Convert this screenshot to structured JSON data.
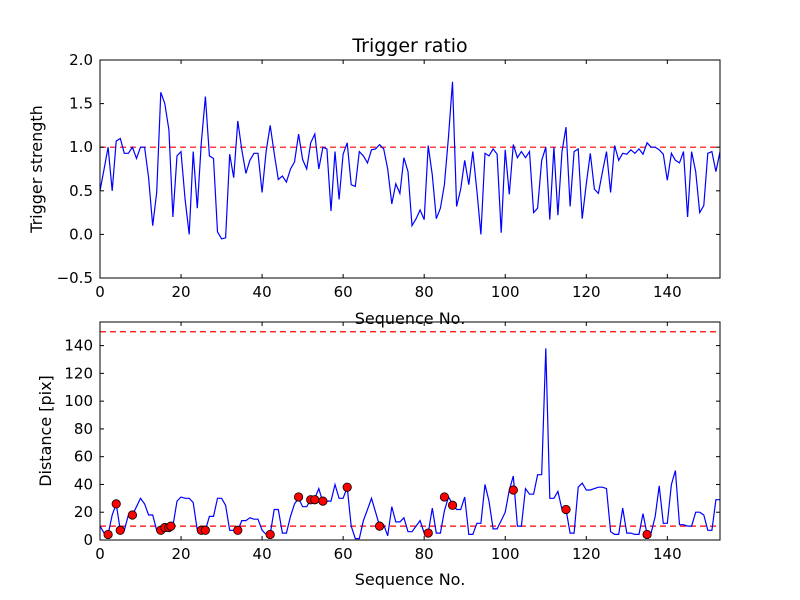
{
  "chart_data": [
    {
      "type": "line",
      "title": "Trigger ratio",
      "xlabel": "Sequence No.",
      "ylabel": "Trigger strength",
      "xlim": [
        0,
        153
      ],
      "ylim": [
        -0.5,
        2.0
      ],
      "xticks": [
        0,
        20,
        40,
        60,
        80,
        100,
        120,
        140
      ],
      "xtick_labels": [
        "0",
        "20",
        "40",
        "60",
        "80",
        "100",
        "120",
        "140"
      ],
      "yticks": [
        -0.5,
        0.0,
        0.5,
        1.0,
        1.5,
        2.0
      ],
      "ytick_labels": [
        "−0.5",
        "0.0",
        "0.5",
        "1.0",
        "1.5",
        "2.0"
      ],
      "line_color": "#0000ff",
      "ref_color": "#ff0000",
      "reference_lines": [
        1.0
      ],
      "series": [
        {
          "x": [
            0,
            1,
            2,
            3,
            4,
            5,
            6,
            7,
            8,
            9,
            10,
            11,
            12,
            13,
            14,
            15,
            16,
            17,
            18,
            19,
            20,
            21,
            22,
            23,
            24,
            25,
            26,
            27,
            28,
            29,
            30,
            31,
            32,
            33,
            34,
            35,
            36,
            37,
            38,
            39,
            40,
            41,
            42,
            43,
            44,
            45,
            46,
            47,
            48,
            49,
            50,
            51,
            52,
            53,
            54,
            55,
            56,
            57,
            58,
            59,
            60,
            61,
            62,
            63,
            64,
            65,
            66,
            67,
            68,
            69,
            70,
            71,
            72,
            73,
            74,
            75,
            76,
            77,
            78,
            79,
            80,
            81,
            82,
            83,
            84,
            85,
            86,
            87,
            88,
            89,
            90,
            91,
            92,
            93,
            94,
            95,
            96,
            97,
            98,
            99,
            100,
            101,
            102,
            103,
            104,
            105,
            106,
            107,
            108,
            109,
            110,
            111,
            112,
            113,
            114,
            115,
            116,
            117,
            118,
            119,
            120,
            121,
            122,
            123,
            124,
            125,
            126,
            127,
            128,
            129,
            130,
            131,
            132,
            133,
            134,
            135,
            136,
            137,
            138,
            139,
            140,
            141,
            142,
            143,
            144,
            145,
            146,
            147,
            148,
            149,
            150,
            151,
            152,
            153
          ],
          "y": [
            0.5,
            0.75,
            1.0,
            0.5,
            1.07,
            1.1,
            0.93,
            0.93,
            1.0,
            0.87,
            1.0,
            1.0,
            0.65,
            0.1,
            0.48,
            1.63,
            1.5,
            1.2,
            0.2,
            0.9,
            0.95,
            0.4,
            0.0,
            0.95,
            0.3,
            1.05,
            1.58,
            0.9,
            0.87,
            0.03,
            -0.05,
            -0.04,
            0.92,
            0.65,
            1.3,
            0.97,
            0.7,
            0.85,
            0.93,
            0.93,
            0.48,
            0.95,
            1.25,
            0.93,
            0.63,
            0.67,
            0.6,
            0.75,
            0.83,
            1.15,
            0.86,
            0.75,
            1.05,
            1.15,
            0.75,
            1.0,
            0.98,
            0.27,
            0.95,
            0.4,
            0.92,
            1.05,
            0.57,
            0.55,
            0.95,
            0.9,
            0.82,
            0.97,
            0.98,
            1.03,
            0.98,
            0.75,
            0.35,
            0.58,
            0.47,
            0.88,
            0.72,
            0.1,
            0.18,
            0.28,
            0.17,
            1.02,
            0.68,
            0.18,
            0.3,
            0.57,
            1.12,
            1.75,
            0.32,
            0.52,
            0.85,
            0.57,
            0.95,
            0.5,
            0.0,
            0.93,
            0.9,
            0.98,
            0.92,
            0.02,
            0.97,
            0.46,
            1.03,
            0.88,
            0.95,
            0.88,
            0.95,
            0.25,
            0.3,
            0.85,
            1.0,
            0.17,
            1.0,
            0.22,
            0.95,
            1.23,
            0.32,
            0.95,
            0.98,
            0.18,
            0.58,
            0.93,
            0.52,
            0.47,
            0.72,
            0.95,
            0.48,
            1.02,
            0.85,
            0.93,
            0.92,
            0.97,
            0.93,
            0.98,
            0.92,
            1.05,
            1.0,
            1.0,
            0.97,
            0.92,
            0.62,
            0.93,
            0.85,
            0.82,
            0.95,
            0.2,
            0.95,
            0.72,
            0.25,
            0.33,
            0.93,
            0.95,
            0.72,
            0.95
          ]
        }
      ]
    },
    {
      "type": "line",
      "title": "",
      "xlabel": "Sequence No.",
      "ylabel": "Distance [pix]",
      "xlim": [
        0,
        153
      ],
      "ylim": [
        0,
        157
      ],
      "xticks": [
        0,
        20,
        40,
        60,
        80,
        100,
        120,
        140
      ],
      "xtick_labels": [
        "0",
        "20",
        "40",
        "60",
        "80",
        "100",
        "120",
        "140"
      ],
      "yticks": [
        0,
        20,
        40,
        60,
        80,
        100,
        120,
        140
      ],
      "ytick_labels": [
        "0",
        "20",
        "40",
        "60",
        "80",
        "100",
        "120",
        "140"
      ],
      "line_color": "#0000ff",
      "ref_color": "#ff0000",
      "marker_color": "#ff0000",
      "reference_lines": [
        10,
        150
      ],
      "series": [
        {
          "x": [
            0,
            1,
            2,
            3,
            4,
            5,
            6,
            7,
            8,
            9,
            10,
            11,
            12,
            13,
            14,
            15,
            16,
            17,
            18,
            19,
            20,
            21,
            22,
            23,
            24,
            25,
            26,
            27,
            28,
            29,
            30,
            31,
            32,
            33,
            34,
            35,
            36,
            37,
            38,
            39,
            40,
            41,
            42,
            43,
            44,
            45,
            46,
            47,
            48,
            49,
            50,
            51,
            52,
            53,
            54,
            55,
            56,
            57,
            58,
            59,
            60,
            61,
            62,
            63,
            64,
            65,
            66,
            67,
            68,
            69,
            70,
            71,
            72,
            73,
            74,
            75,
            76,
            77,
            78,
            79,
            80,
            81,
            82,
            83,
            84,
            85,
            86,
            87,
            88,
            89,
            90,
            91,
            92,
            93,
            94,
            95,
            96,
            97,
            98,
            99,
            100,
            101,
            102,
            103,
            104,
            105,
            106,
            107,
            108,
            109,
            110,
            111,
            112,
            113,
            114,
            115,
            116,
            117,
            118,
            119,
            120,
            121,
            122,
            123,
            124,
            125,
            126,
            127,
            128,
            129,
            130,
            131,
            132,
            133,
            134,
            135,
            136,
            137,
            138,
            139,
            140,
            141,
            142,
            143,
            144,
            145,
            146,
            147,
            148,
            149,
            150,
            151,
            152,
            153
          ],
          "y": [
            10,
            5,
            4,
            18,
            26,
            7,
            7,
            18,
            18,
            24,
            30,
            26,
            18,
            18,
            7,
            8,
            9,
            10,
            10,
            28,
            31,
            30,
            30,
            27,
            7,
            7,
            7,
            17,
            17,
            30,
            30,
            25,
            7,
            7,
            7,
            14,
            14,
            16,
            15,
            15,
            7,
            4,
            4,
            22,
            22,
            5,
            5,
            17,
            26,
            30,
            24,
            24,
            29,
            30,
            37,
            27,
            28,
            28,
            40,
            30,
            30,
            38,
            10,
            1,
            1,
            14,
            22,
            30,
            20,
            10,
            11,
            3,
            24,
            13,
            13,
            16,
            6,
            6,
            10,
            14,
            5,
            5,
            23,
            5,
            5,
            21,
            31,
            26,
            22,
            22,
            31,
            4,
            4,
            12,
            12,
            40,
            28,
            8,
            8,
            14,
            20,
            36,
            46,
            10,
            10,
            37,
            33,
            33,
            47,
            47,
            138,
            30,
            30,
            35,
            22,
            22,
            5,
            5,
            38,
            41,
            36,
            36,
            37,
            38,
            38,
            37,
            6,
            4,
            4,
            23,
            5,
            5,
            4,
            4,
            19,
            4,
            5,
            17,
            39,
            12,
            12,
            40,
            50,
            11,
            11,
            10,
            10,
            20,
            20,
            18,
            7,
            7,
            29,
            29
          ]
        }
      ],
      "markers": {
        "x": [
          2,
          4,
          5,
          8,
          15,
          16,
          17,
          17.5,
          25,
          26,
          34,
          42,
          49,
          52,
          53,
          55,
          61,
          69,
          81,
          85,
          87,
          102,
          115,
          135
        ],
        "y": [
          4,
          26,
          7,
          18,
          7,
          9,
          9,
          10,
          7,
          7,
          7,
          4,
          31,
          29,
          29,
          28,
          38,
          10,
          5,
          31,
          25,
          36,
          22,
          4
        ]
      }
    }
  ]
}
